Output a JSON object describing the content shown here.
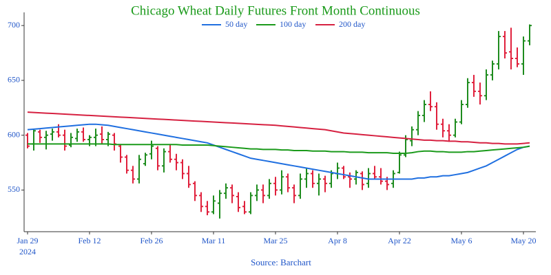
{
  "chart_data": {
    "type": "ohlc",
    "title": "Chicago Wheat Daily Futures Front Month Continuous",
    "source": "Source: Barchart",
    "year": "2024",
    "categories": [
      "Jan 29",
      null,
      null,
      null,
      null,
      null,
      null,
      null,
      null,
      null,
      "Feb 12",
      null,
      null,
      null,
      null,
      null,
      null,
      null,
      null,
      null,
      "Feb 26",
      null,
      null,
      null,
      null,
      null,
      null,
      null,
      null,
      null,
      "Mar 11",
      null,
      null,
      null,
      null,
      null,
      null,
      null,
      null,
      null,
      "Mar 25",
      null,
      null,
      null,
      null,
      null,
      null,
      null,
      null,
      null,
      "Apr 8",
      null,
      null,
      null,
      null,
      null,
      null,
      null,
      null,
      null,
      "Apr 22",
      null,
      null,
      null,
      null,
      null,
      null,
      null,
      null,
      null,
      "May 6",
      null,
      null,
      null,
      null,
      null,
      null,
      null,
      null,
      null,
      "May 20",
      null
    ],
    "open": [
      600,
      592,
      603,
      598,
      601,
      603,
      600,
      591,
      597,
      603,
      596,
      598,
      601,
      596,
      600,
      590,
      580,
      568,
      560,
      574,
      583,
      588,
      572,
      585,
      578,
      575,
      565,
      556,
      545,
      535,
      530,
      538,
      547,
      552,
      544,
      535,
      530,
      545,
      550,
      545,
      556,
      550,
      562,
      552,
      545,
      560,
      565,
      556,
      560,
      556,
      565,
      570,
      562,
      560,
      565,
      556,
      565,
      562,
      558,
      556,
      566,
      582,
      595,
      605,
      618,
      628,
      626,
      610,
      604,
      600,
      612,
      628,
      648,
      640,
      636,
      655,
      665,
      690,
      676,
      670,
      665,
      686
    ],
    "high": [
      602,
      606,
      605,
      604,
      606,
      610,
      605,
      602,
      606,
      607,
      600,
      606,
      608,
      603,
      602,
      592,
      582,
      572,
      582,
      584,
      595,
      590,
      588,
      592,
      583,
      578,
      572,
      558,
      548,
      540,
      545,
      550,
      556,
      555,
      548,
      540,
      548,
      555,
      555,
      560,
      562,
      568,
      565,
      555,
      565,
      570,
      568,
      565,
      563,
      568,
      575,
      572,
      566,
      568,
      567,
      570,
      572,
      570,
      562,
      568,
      585,
      600,
      608,
      622,
      632,
      640,
      630,
      615,
      610,
      615,
      632,
      652,
      655,
      648,
      660,
      668,
      695,
      695,
      698,
      680,
      690,
      701
    ],
    "low": [
      588,
      586,
      593,
      587,
      595,
      598,
      586,
      589,
      594,
      594,
      590,
      590,
      592,
      590,
      586,
      575,
      565,
      556,
      556,
      572,
      578,
      568,
      566,
      575,
      568,
      560,
      552,
      540,
      530,
      527,
      528,
      524,
      542,
      538,
      530,
      528,
      528,
      540,
      538,
      542,
      545,
      546,
      548,
      538,
      542,
      552,
      552,
      545,
      548,
      552,
      560,
      560,
      552,
      555,
      550,
      552,
      560,
      555,
      550,
      552,
      565,
      580,
      590,
      600,
      612,
      622,
      605,
      598,
      594,
      598,
      610,
      625,
      635,
      628,
      632,
      650,
      660,
      670,
      660,
      662,
      655,
      682
    ],
    "close": [
      590,
      604,
      598,
      600,
      603,
      600,
      590,
      598,
      603,
      596,
      598,
      600,
      596,
      601,
      592,
      580,
      568,
      560,
      578,
      582,
      590,
      572,
      585,
      578,
      575,
      565,
      555,
      545,
      535,
      530,
      540,
      547,
      552,
      545,
      534,
      530,
      545,
      550,
      545,
      556,
      550,
      562,
      552,
      545,
      560,
      565,
      556,
      560,
      556,
      565,
      570,
      562,
      560,
      566,
      555,
      565,
      562,
      558,
      555,
      565,
      582,
      596,
      605,
      618,
      628,
      626,
      610,
      604,
      600,
      612,
      628,
      648,
      640,
      636,
      655,
      665,
      690,
      675,
      670,
      665,
      686,
      700
    ],
    "up_color": "#1e8c1e",
    "down_color": "#e0203c",
    "series": [
      {
        "name": "50 day",
        "color": "#1f6fe0",
        "values": [
          605,
          605.5,
          606,
          606.5,
          607,
          607.5,
          608,
          608.5,
          609,
          609.5,
          610,
          610,
          609.5,
          609,
          608,
          607,
          606,
          605,
          604,
          603,
          602,
          601,
          600,
          599,
          598,
          597,
          596,
          595,
          594,
          593,
          591,
          589,
          587,
          585,
          583,
          581,
          579,
          578,
          577,
          576,
          575,
          574,
          573,
          572,
          571,
          570,
          569,
          568,
          567,
          566,
          565,
          564,
          563,
          562,
          561,
          560,
          560,
          560,
          560,
          560,
          560,
          560,
          560,
          561,
          561,
          562,
          562,
          563,
          563,
          564,
          565,
          566,
          568,
          570,
          572,
          575,
          578,
          581,
          584,
          587,
          589,
          590
        ]
      },
      {
        "name": "100 day",
        "color": "#1a9a1a",
        "values": [
          592,
          592,
          592,
          592,
          592,
          592,
          592,
          592,
          592,
          592,
          592,
          592,
          592,
          592,
          591.5,
          591.5,
          591.5,
          591.5,
          591.5,
          591.5,
          591.5,
          591.5,
          591.5,
          591.5,
          591.5,
          591,
          591,
          591,
          591,
          591,
          590.5,
          590,
          589.5,
          589,
          588.5,
          588,
          587.5,
          587.5,
          587,
          587,
          587,
          586.5,
          586.5,
          586,
          586,
          586,
          585.5,
          585.5,
          585.5,
          585,
          585,
          585,
          584.5,
          584.5,
          584.5,
          584,
          584,
          584,
          584,
          583.5,
          583.5,
          583.5,
          584,
          585,
          585.5,
          585.5,
          585,
          585,
          584.5,
          584.5,
          584.5,
          585,
          585,
          585.5,
          586,
          586.5,
          587,
          587.5,
          588,
          588.5,
          589,
          590
        ]
      },
      {
        "name": "200 day",
        "color": "#d62040",
        "values": [
          621,
          620.7,
          620.4,
          620.1,
          619.8,
          619.5,
          619.2,
          618.9,
          618.6,
          618.3,
          618,
          617.7,
          617.4,
          617.1,
          616.8,
          616.5,
          616.2,
          615.9,
          615.6,
          615.3,
          615,
          614.7,
          614.4,
          614.1,
          613.8,
          613.5,
          613.2,
          612.9,
          612.6,
          612.3,
          612,
          611.7,
          611.4,
          611.1,
          610.8,
          610.5,
          610.2,
          609.9,
          609.6,
          609.3,
          609,
          608.5,
          608,
          607.5,
          607,
          606.5,
          606,
          605.5,
          605,
          604,
          603,
          602,
          601.5,
          601,
          600.5,
          600,
          599.5,
          599,
          598.5,
          598,
          597.5,
          597,
          596.5,
          596,
          595.5,
          595.5,
          595,
          595,
          594.5,
          594.5,
          594,
          594,
          593.5,
          593,
          593,
          592.5,
          592.5,
          592,
          592,
          592,
          592.5,
          593
        ]
      }
    ],
    "ylim": [
      512,
      712
    ],
    "yticks": [
      550,
      600,
      650,
      700
    ],
    "legend": "top",
    "grid": false
  }
}
